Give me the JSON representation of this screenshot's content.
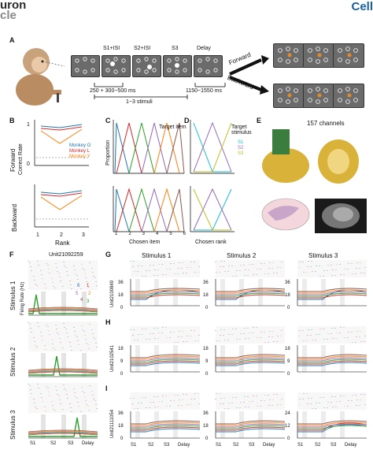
{
  "header": {
    "left_top": "uron",
    "left_bottom": "cle",
    "right": "Cell"
  },
  "panels": {
    "A": "A",
    "B": "B",
    "C": "C",
    "D": "D",
    "E": "E",
    "F": "F",
    "G": "G",
    "H": "H",
    "I": "I"
  },
  "task": {
    "epochs": [
      "S1+ISI",
      "S2+ISI",
      "S3",
      "Delay"
    ],
    "timing_1": "250 + 300~500 ms",
    "timing_2": "1150~1550 ms",
    "stimuli": "1~3 stimuli",
    "forward": "Forward",
    "backward": "Backward"
  },
  "behavior": {
    "forward": "Forward",
    "backward": "Backward",
    "correct_rate": "Correct Rate",
    "rank": "Rank",
    "monkeys": [
      "Monkey O",
      "Monkey L",
      "Monkey Y"
    ],
    "ticks_y": [
      "1",
      "0"
    ],
    "ticks_x": [
      "1",
      "2",
      "3"
    ]
  },
  "panelC": {
    "ylabel": "Proportion",
    "xlabel": "Chosen item",
    "legend_title": "Target item",
    "ticks_x": [
      "1",
      "2",
      "3",
      "4",
      "5",
      "6"
    ],
    "legend_nums": [
      "1",
      "2",
      "3",
      "4",
      "5",
      "6"
    ]
  },
  "panelD": {
    "xlabel": "Chosen rank",
    "legend_title": "Target stimulus",
    "legend": [
      "S1",
      "S2",
      "S3"
    ],
    "ticks_x": [
      "1",
      "2",
      "3"
    ]
  },
  "panelE": {
    "channels": "157 channels"
  },
  "panelF": {
    "unit": "Unit21092259",
    "rows": [
      "Stimulus 1",
      "Stimulus 2",
      "Stimulus 3"
    ],
    "ylabel": "Firing Rate (Hz)",
    "legend_nums": [
      "1",
      "2",
      "3",
      "4",
      "5",
      "6"
    ],
    "xticks": [
      "S1",
      "S2",
      "S3",
      "Delay"
    ]
  },
  "panelG": {
    "cols": [
      "Stimulus 1",
      "Stimulus 2",
      "Stimulus 3"
    ],
    "unit": "Unit2100849",
    "yticks": [
      "36",
      "18",
      "0"
    ]
  },
  "panelH": {
    "unit": "Unit2102541",
    "yticks": [
      "18",
      "9",
      "0"
    ]
  },
  "panelI": {
    "unit": "Unit21111054",
    "yticks_a": [
      "36",
      "18",
      "0"
    ],
    "yticks_b": [
      "24",
      "12",
      "0"
    ],
    "xticks": [
      "S1",
      "S2",
      "S3",
      "Delay"
    ]
  },
  "colors": {
    "c1": "#1f77b4",
    "c2": "#d62728",
    "c3": "#2ca02c",
    "c4": "#9467bd",
    "c5": "#ff7f0e",
    "c6": "#8c564b",
    "s1": "#17becf",
    "s2": "#9467bd",
    "s3": "#bcbd22"
  }
}
